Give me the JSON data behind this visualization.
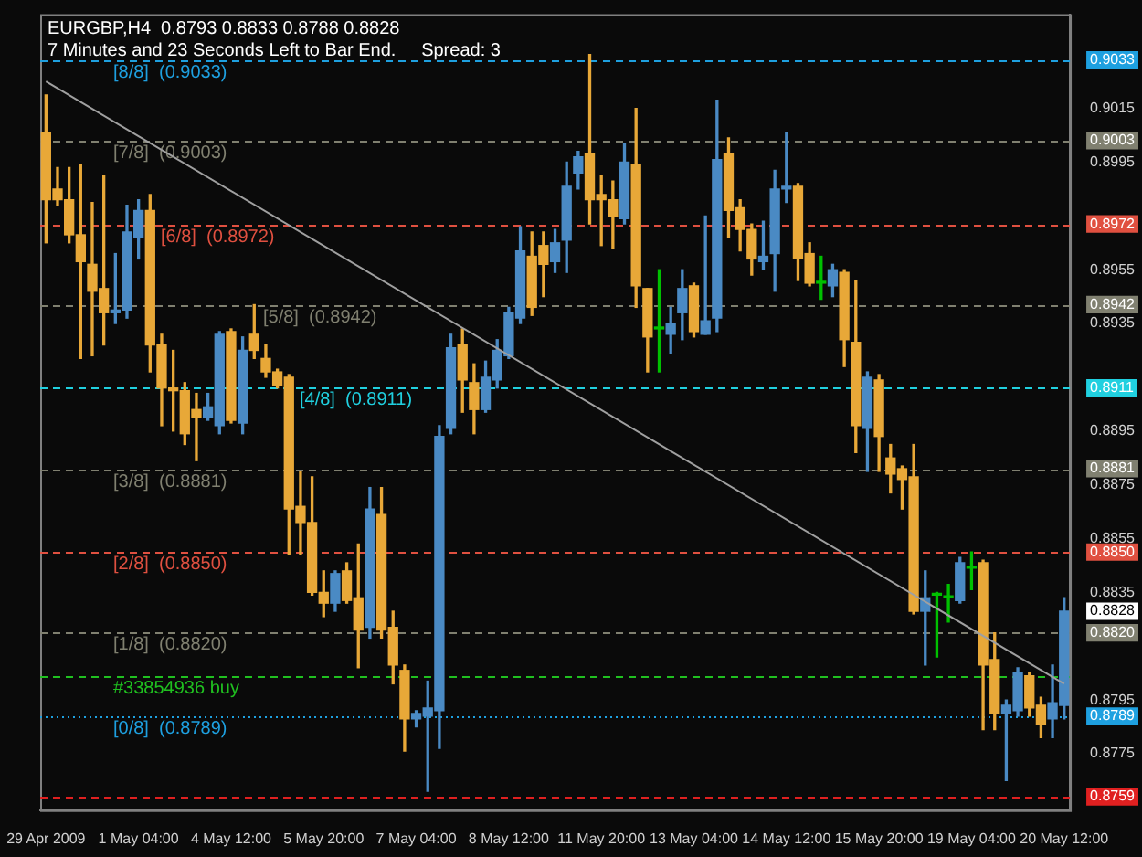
{
  "chart_data": {
    "type": "candlestick",
    "title": "EURGBP,H4  0.8793 0.8833 0.8788 0.8828",
    "subtitle": "7 Minutes and 23 Seconds Left to Bar End.     Spread: 3",
    "categories": [
      "29 Apr 2009",
      null,
      null,
      null,
      null,
      null,
      null,
      null,
      "1 May 04:00",
      null,
      null,
      null,
      null,
      null,
      null,
      null,
      "4 May 12:00",
      null,
      null,
      null,
      null,
      null,
      null,
      null,
      "5 May 20:00",
      null,
      null,
      null,
      null,
      null,
      null,
      null,
      "7 May 04:00",
      null,
      null,
      null,
      null,
      null,
      null,
      null,
      "8 May 12:00",
      null,
      null,
      null,
      null,
      null,
      null,
      null,
      "11 May 20:00",
      null,
      null,
      null,
      null,
      null,
      null,
      null,
      "13 May 04:00",
      null,
      null,
      null,
      null,
      null,
      null,
      null,
      "14 May 12:00",
      null,
      null,
      null,
      null,
      null,
      null,
      null,
      "15 May 20:00",
      null,
      null,
      null,
      null,
      null,
      null,
      null,
      "19 May 04:00",
      null,
      null,
      null,
      null,
      null,
      null,
      null,
      "20 May 12:00"
    ],
    "ohlc": [
      [
        0.9006,
        0.902,
        0.8965,
        0.8981
      ],
      [
        0.8985,
        0.8993,
        0.8979,
        0.8981
      ],
      [
        0.8981,
        0.8993,
        0.8965,
        0.8968
      ],
      [
        0.8968,
        0.8994,
        0.8922,
        0.8958
      ],
      [
        0.8957,
        0.898,
        0.8923,
        0.8947
      ],
      [
        0.8948,
        0.899,
        0.8927,
        0.8939
      ],
      [
        0.8939,
        0.8961,
        0.8935,
        0.894
      ],
      [
        0.894,
        0.8979,
        0.8937,
        0.8969
      ],
      [
        0.8967,
        0.8981,
        0.8959,
        0.8977
      ],
      [
        0.8977,
        0.8983,
        0.8917,
        0.8927
      ],
      [
        0.8927,
        0.8931,
        0.8897,
        0.8911
      ],
      [
        0.8911,
        0.8925,
        0.8895,
        0.891
      ],
      [
        0.891,
        0.8913,
        0.889,
        0.8894
      ],
      [
        0.8903,
        0.8909,
        0.8884,
        0.89
      ],
      [
        0.89,
        0.8909,
        0.8899,
        0.8904
      ],
      [
        0.8897,
        0.8932,
        0.8894,
        0.8931
      ],
      [
        0.8932,
        0.8933,
        0.8898,
        0.8899
      ],
      [
        0.8898,
        0.893,
        0.8894,
        0.8925
      ],
      [
        0.8931,
        0.8942,
        0.8922,
        0.8925
      ],
      [
        0.8922,
        0.8927,
        0.8915,
        0.8917
      ],
      [
        0.8917,
        0.8918,
        0.8911,
        0.8912
      ],
      [
        0.8915,
        0.8916,
        0.8849,
        0.8866
      ],
      [
        0.8867,
        0.888,
        0.8849,
        0.8861
      ],
      [
        0.8861,
        0.8878,
        0.8834,
        0.8835
      ],
      [
        0.8835,
        0.8843,
        0.8826,
        0.8831
      ],
      [
        0.8831,
        0.8843,
        0.8828,
        0.8842
      ],
      [
        0.8843,
        0.8846,
        0.8831,
        0.8832
      ],
      [
        0.8833,
        0.8853,
        0.8807,
        0.8821
      ],
      [
        0.8822,
        0.8874,
        0.8818,
        0.8866
      ],
      [
        0.8864,
        0.8874,
        0.8818,
        0.8821
      ],
      [
        0.8822,
        0.8828,
        0.8801,
        0.8808
      ],
      [
        0.8806,
        0.8808,
        0.8776,
        0.8788
      ],
      [
        0.8788,
        0.8791,
        0.8785,
        0.879
      ],
      [
        0.8789,
        0.8802,
        0.8761,
        0.8792
      ],
      [
        0.8791,
        0.8897,
        0.8777,
        0.8893
      ],
      [
        0.8896,
        0.8931,
        0.8894,
        0.8926
      ],
      [
        0.8927,
        0.8933,
        0.8902,
        0.8914
      ],
      [
        0.8913,
        0.892,
        0.8894,
        0.8903
      ],
      [
        0.8903,
        0.8921,
        0.8902,
        0.8915
      ],
      [
        0.8914,
        0.8929,
        0.8911,
        0.8925
      ],
      [
        0.8923,
        0.8941,
        0.8922,
        0.8939
      ],
      [
        0.8937,
        0.8971,
        0.8935,
        0.8962
      ],
      [
        0.896,
        0.8969,
        0.8938,
        0.8941
      ],
      [
        0.8964,
        0.8969,
        0.8945,
        0.8957
      ],
      [
        0.8958,
        0.897,
        0.8954,
        0.8965
      ],
      [
        0.8966,
        0.8995,
        0.8954,
        0.8986
      ],
      [
        0.8991,
        0.8999,
        0.8985,
        0.8997
      ],
      [
        0.8998,
        0.9035,
        0.8972,
        0.8981
      ],
      [
        0.8983,
        0.899,
        0.8964,
        0.8981
      ],
      [
        0.8981,
        0.8988,
        0.8963,
        0.8975
      ],
      [
        0.8974,
        0.9002,
        0.8972,
        0.8995
      ],
      [
        0.8994,
        0.9015,
        0.8941,
        0.8949
      ],
      [
        0.8948,
        0.8948,
        0.8917,
        0.893
      ],
      [
        0.8933,
        0.8955,
        0.8917,
        0.8933
      ],
      [
        0.8931,
        0.8941,
        0.8924,
        0.8935
      ],
      [
        0.8939,
        0.8955,
        0.8929,
        0.8948
      ],
      [
        0.8949,
        0.895,
        0.893,
        0.8932
      ],
      [
        0.8931,
        0.8975,
        0.8931,
        0.8936
      ],
      [
        0.8937,
        0.9018,
        0.8932,
        0.8996
      ],
      [
        0.8998,
        0.9004,
        0.8967,
        0.8977
      ],
      [
        0.8978,
        0.8981,
        0.8962,
        0.897
      ],
      [
        0.897,
        0.8972,
        0.8953,
        0.8959
      ],
      [
        0.8958,
        0.8973,
        0.8955,
        0.896
      ],
      [
        0.8961,
        0.8992,
        0.8947,
        0.8985
      ],
      [
        0.8985,
        0.9006,
        0.898,
        0.8986
      ],
      [
        0.8986,
        0.8987,
        0.8951,
        0.8959
      ],
      [
        0.8961,
        0.8965,
        0.8949,
        0.895
      ],
      [
        0.895,
        0.896,
        0.8944,
        0.895
      ],
      [
        0.8949,
        0.8957,
        0.8945,
        0.8955
      ],
      [
        0.8954,
        0.8955,
        0.8919,
        0.8929
      ],
      [
        0.8928,
        0.8951,
        0.8887,
        0.8897
      ],
      [
        0.8896,
        0.8917,
        0.888,
        0.8915
      ],
      [
        0.8914,
        0.8916,
        0.888,
        0.8893
      ],
      [
        0.8885,
        0.889,
        0.8872,
        0.8879
      ],
      [
        0.8881,
        0.8882,
        0.8866,
        0.8877
      ],
      [
        0.8878,
        0.889,
        0.8827,
        0.8828
      ],
      [
        0.8828,
        0.8843,
        0.8808,
        0.8833
      ],
      [
        0.8834,
        0.8835,
        0.8811,
        0.8834
      ],
      [
        0.8833,
        0.8838,
        0.8824,
        0.8833
      ],
      [
        0.8832,
        0.8848,
        0.8831,
        0.8846
      ],
      [
        0.8844,
        0.885,
        0.8836,
        0.8844
      ],
      [
        0.8846,
        0.8847,
        0.8784,
        0.8808
      ],
      [
        0.881,
        0.882,
        0.8784,
        0.879
      ],
      [
        0.879,
        0.8795,
        0.8765,
        0.8793
      ],
      [
        0.8791,
        0.8807,
        0.8789,
        0.8805
      ],
      [
        0.8804,
        0.8805,
        0.8789,
        0.8792
      ],
      [
        0.8793,
        0.8796,
        0.8781,
        0.8786
      ],
      [
        0.8788,
        0.8808,
        0.8781,
        0.8794
      ],
      [
        0.8793,
        0.8833,
        0.8788,
        0.8828
      ]
    ],
    "colors": [
      "#e8a838",
      "#e8a838",
      "#e8a838",
      "#e8a838",
      "#e8a838",
      "#e8a838",
      "#4a8ac4",
      "#4a8ac4",
      "#4a8ac4",
      "#e8a838",
      "#e8a838",
      "#e8a838",
      "#e8a838",
      "#e8a838",
      "#4a8ac4",
      "#4a8ac4",
      "#e8a838",
      "#4a8ac4",
      "#e8a838",
      "#e8a838",
      "#e8a838",
      "#e8a838",
      "#e8a838",
      "#e8a838",
      "#e8a838",
      "#4a8ac4",
      "#e8a838",
      "#e8a838",
      "#4a8ac4",
      "#e8a838",
      "#e8a838",
      "#e8a838",
      "#4a8ac4",
      "#4a8ac4",
      "#4a8ac4",
      "#4a8ac4",
      "#e8a838",
      "#e8a838",
      "#4a8ac4",
      "#4a8ac4",
      "#4a8ac4",
      "#4a8ac4",
      "#e8a838",
      "#e8a838",
      "#4a8ac4",
      "#4a8ac4",
      "#4a8ac4",
      "#e8a838",
      "#e8a838",
      "#e8a838",
      "#4a8ac4",
      "#e8a838",
      "#e8a838",
      "#00c000",
      "#4a8ac4",
      "#4a8ac4",
      "#e8a838",
      "#4a8ac4",
      "#4a8ac4",
      "#e8a838",
      "#e8a838",
      "#e8a838",
      "#4a8ac4",
      "#4a8ac4",
      "#4a8ac4",
      "#e8a838",
      "#e8a838",
      "#00c000",
      "#4a8ac4",
      "#e8a838",
      "#e8a838",
      "#4a8ac4",
      "#e8a838",
      "#e8a838",
      "#e8a838",
      "#e8a838",
      "#4a8ac4",
      "#00c000",
      "#00c000",
      "#4a8ac4",
      "#00c000",
      "#e8a838",
      "#e8a838",
      "#4a8ac4",
      "#4a8ac4",
      "#e8a838",
      "#e8a838",
      "#4a8ac4",
      "#4a8ac4"
    ],
    "series": [
      {
        "type": "line",
        "x": [
          "29 Apr 2009",
          "20 May 12:00"
        ],
        "values": [
          0.9025,
          0.8801
        ],
        "color": "#a0a0a0"
      }
    ],
    "ylim": [
      0.8754,
      0.905
    ],
    "yticks": [
      0.9033,
      0.9015,
      0.9003,
      0.8995,
      0.8972,
      0.8955,
      0.8942,
      0.8935,
      0.8911,
      0.8895,
      0.8881,
      0.8875,
      0.8855,
      {
        "value": 0.885,
        "label": "0.8850"
      },
      0.8835,
      0.8828,
      {
        "value": 0.882,
        "label": "0.8820"
      },
      0.8795,
      0.8789,
      0.8775,
      0.8759
    ],
    "ref_lines": [
      {
        "axis": "y",
        "value": 0.9033,
        "label": "[8/8]  (0.9033)",
        "color": "#1ea0e0",
        "line_style": "dashed"
      },
      {
        "axis": "y",
        "value": 0.9003,
        "label": "[7/8]  (0.9003)",
        "color": "#808070",
        "line_style": "dashed"
      },
      {
        "axis": "y",
        "value": 0.8972,
        "label": "[6/8]  (0.8972)",
        "color": "#e05040",
        "line_style": "dashed"
      },
      {
        "axis": "y",
        "value": 0.8942,
        "label": "[5/8]  (0.8942)",
        "color": "#808070",
        "line_style": "dashed"
      },
      {
        "axis": "y",
        "value": 0.8911,
        "label": "[4/8]  (0.8911)",
        "color": "#20d0e0",
        "line_style": "dashed"
      },
      {
        "axis": "y",
        "value": 0.8881,
        "label": "[3/8]  (0.8881)",
        "color": "#808070",
        "line_style": "dashed"
      },
      {
        "axis": "y",
        "value": 0.885,
        "label": "[2/8]  (0.8850)",
        "color": "#e05040",
        "line_style": "dashed"
      },
      {
        "axis": "y",
        "value": 0.882,
        "label": "[1/8]  (0.8820)",
        "color": "#808070",
        "line_style": "dashed"
      },
      {
        "axis": "y",
        "value": 0.8804,
        "label": "#33854936 buy",
        "color": "#20c020",
        "line_style": "dashed"
      },
      {
        "axis": "y",
        "value": 0.8789,
        "label": "[0/8]  (0.8789)",
        "color": "#1ea0e0",
        "line_style": "dotted"
      },
      {
        "axis": "y",
        "value": 0.8759,
        "color": "#e02020",
        "line_style": "dashed"
      }
    ],
    "grid": false
  }
}
